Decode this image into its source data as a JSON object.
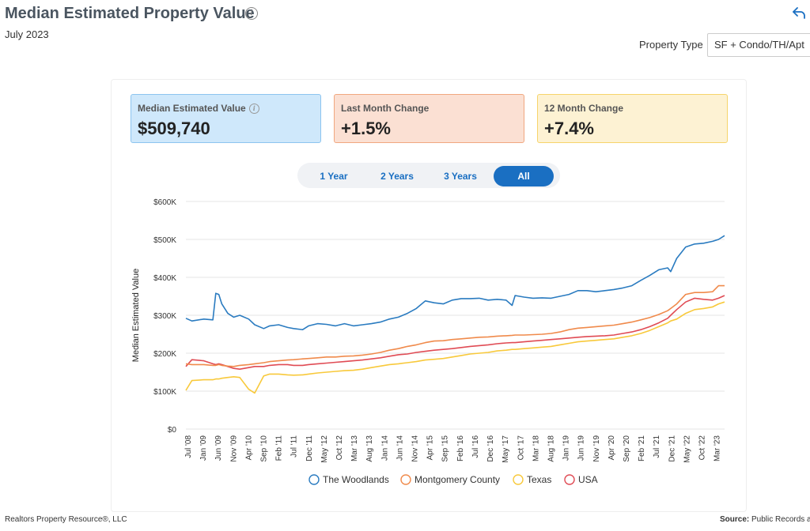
{
  "header": {
    "title": "Median Estimated Property Value",
    "subtitle": "July 2023",
    "property_type_label": "Property Type",
    "property_type_value": "SF + Condo/TH/Apt"
  },
  "cards": [
    {
      "label": "Median Estimated Value",
      "value": "$509,740",
      "color": "#cfe8fb"
    },
    {
      "label": "Last Month Change",
      "value": "+1.5%",
      "color": "#fbe0d3"
    },
    {
      "label": "12 Month Change",
      "value": "+7.4%",
      "color": "#fdf2d3"
    }
  ],
  "ranges": [
    "1 Year",
    "2 Years",
    "3 Years",
    "All"
  ],
  "selected_range": "All",
  "footer": {
    "left": "Realtors Property Resource®, LLC",
    "source_label": "Source:",
    "source_value": "Public Records a"
  },
  "chart_data": {
    "type": "line",
    "ylabel": "Median Estimated Value",
    "ylim": [
      0,
      600000
    ],
    "yticks": [
      "$0",
      "$100K",
      "$200K",
      "$300K",
      "$400K",
      "$500K",
      "$600K"
    ],
    "xticks": [
      "Jul '08",
      "Jan '09",
      "Jun '09",
      "Nov '09",
      "Apr '10",
      "Sep '10",
      "Feb '11",
      "Jul '11",
      "Dec '11",
      "May '12",
      "Oct '12",
      "Mar '13",
      "Aug '13",
      "Jan '14",
      "Jun '14",
      "Nov '14",
      "Apr '15",
      "Sep '15",
      "Feb '16",
      "Jul '16",
      "Dec '16",
      "May '17",
      "Oct '17",
      "Mar '18",
      "Aug '18",
      "Jan '19",
      "Jun '19",
      "Nov '19",
      "Apr '20",
      "Sep '20",
      "Feb '21",
      "Jul '21",
      "Dec '21",
      "May '22",
      "Oct '22",
      "Mar '23"
    ],
    "x": [
      "2008-07",
      "2008-09",
      "2009-01",
      "2009-04",
      "2009-05",
      "2009-06",
      "2009-07",
      "2009-09",
      "2009-11",
      "2010-01",
      "2010-04",
      "2010-06",
      "2010-09",
      "2010-11",
      "2011-02",
      "2011-05",
      "2011-07",
      "2011-10",
      "2011-12",
      "2012-03",
      "2012-06",
      "2012-09",
      "2012-12",
      "2013-03",
      "2013-06",
      "2013-09",
      "2013-12",
      "2014-03",
      "2014-06",
      "2014-09",
      "2014-12",
      "2015-03",
      "2015-06",
      "2015-09",
      "2015-12",
      "2016-03",
      "2016-06",
      "2016-09",
      "2016-12",
      "2017-03",
      "2017-06",
      "2017-08",
      "2017-09",
      "2017-12",
      "2018-03",
      "2018-06",
      "2018-09",
      "2018-12",
      "2019-03",
      "2019-06",
      "2019-09",
      "2019-12",
      "2020-03",
      "2020-06",
      "2020-09",
      "2020-12",
      "2021-03",
      "2021-06",
      "2021-09",
      "2021-12",
      "2022-01",
      "2022-03",
      "2022-06",
      "2022-09",
      "2022-12",
      "2023-03",
      "2023-05",
      "2023-07"
    ],
    "series": [
      {
        "name": "The Woodlands",
        "color": "#2a7bc0",
        "values": [
          292000,
          285000,
          290000,
          288000,
          358000,
          355000,
          330000,
          305000,
          295000,
          300000,
          290000,
          275000,
          265000,
          272000,
          275000,
          268000,
          265000,
          262000,
          272000,
          278000,
          276000,
          272000,
          278000,
          272000,
          275000,
          278000,
          282000,
          290000,
          295000,
          305000,
          318000,
          338000,
          333000,
          330000,
          340000,
          344000,
          344000,
          345000,
          340000,
          342000,
          340000,
          326000,
          352000,
          348000,
          345000,
          346000,
          345000,
          350000,
          355000,
          365000,
          365000,
          362000,
          365000,
          368000,
          372000,
          378000,
          392000,
          405000,
          420000,
          425000,
          415000,
          450000,
          480000,
          488000,
          490000,
          495000,
          500000,
          510000
        ]
      },
      {
        "name": "Montgomery County",
        "color": "#f08a4b",
        "values": [
          172000,
          170000,
          170000,
          168000,
          168000,
          170000,
          168000,
          166000,
          165000,
          168000,
          170000,
          172000,
          175000,
          178000,
          180000,
          182000,
          183000,
          185000,
          186000,
          188000,
          190000,
          190000,
          192000,
          193000,
          195000,
          198000,
          202000,
          208000,
          212000,
          218000,
          222000,
          228000,
          232000,
          233000,
          236000,
          238000,
          240000,
          242000,
          243000,
          245000,
          246000,
          247000,
          248000,
          248000,
          249000,
          250000,
          252000,
          256000,
          262000,
          266000,
          268000,
          270000,
          272000,
          274000,
          278000,
          282000,
          288000,
          294000,
          302000,
          312000,
          318000,
          330000,
          355000,
          360000,
          360000,
          362000,
          378000,
          378000
        ]
      },
      {
        "name": "Texas",
        "color": "#f8c93b",
        "values": [
          102000,
          128000,
          130000,
          130000,
          132000,
          132000,
          134000,
          136000,
          138000,
          136000,
          105000,
          95000,
          140000,
          145000,
          145000,
          143000,
          142000,
          143000,
          145000,
          148000,
          150000,
          152000,
          154000,
          155000,
          158000,
          162000,
          166000,
          170000,
          172000,
          175000,
          178000,
          182000,
          184000,
          186000,
          190000,
          194000,
          198000,
          200000,
          202000,
          206000,
          208000,
          210000,
          210000,
          212000,
          214000,
          216000,
          218000,
          222000,
          226000,
          230000,
          232000,
          234000,
          236000,
          238000,
          242000,
          246000,
          252000,
          260000,
          270000,
          280000,
          285000,
          290000,
          305000,
          315000,
          318000,
          322000,
          330000,
          335000
        ]
      },
      {
        "name": "USA",
        "color": "#e04b54",
        "values": [
          165000,
          183000,
          180000,
          172000,
          170000,
          172000,
          170000,
          165000,
          160000,
          158000,
          162000,
          165000,
          165000,
          168000,
          170000,
          170000,
          168000,
          168000,
          170000,
          172000,
          174000,
          176000,
          178000,
          180000,
          182000,
          185000,
          188000,
          192000,
          196000,
          198000,
          202000,
          205000,
          208000,
          210000,
          212000,
          215000,
          218000,
          220000,
          222000,
          225000,
          227000,
          228000,
          228000,
          230000,
          232000,
          234000,
          236000,
          238000,
          240000,
          242000,
          244000,
          245000,
          246000,
          248000,
          252000,
          256000,
          262000,
          270000,
          280000,
          292000,
          300000,
          315000,
          335000,
          345000,
          342000,
          340000,
          345000,
          352000
        ]
      }
    ]
  }
}
